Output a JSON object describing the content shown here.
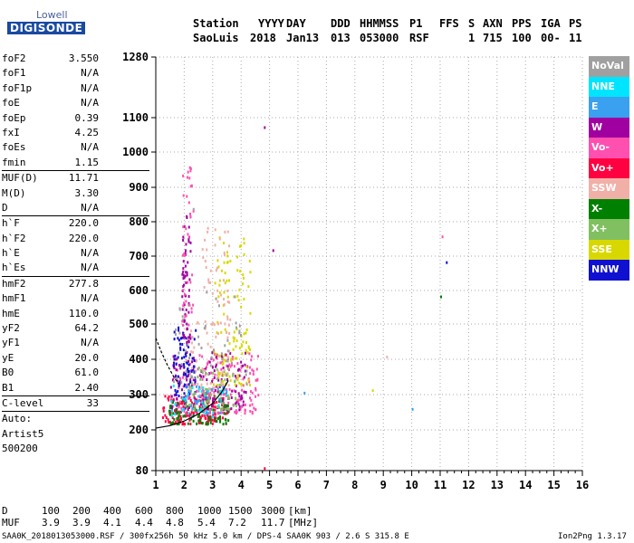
{
  "logo": {
    "line1": "Lowell",
    "line2": "DIGISONDE"
  },
  "header": {
    "labels": {
      "station": "Station",
      "yyyy": "YYYY",
      "day": "DAY",
      "ddd": "DDD",
      "hhmmss": "HHMMSS",
      "p1": "P1",
      "ffs": "FFS",
      "s": "S",
      "axn": "AXN",
      "pps": "PPS",
      "iga": "IGA",
      "ps": "PS"
    },
    "values": {
      "station": "SaoLuis",
      "yyyy": "2018",
      "day": "Jan13",
      "ddd": "013",
      "hhmmss": "053000",
      "p1": "RSF",
      "ffs": "",
      "s": "1",
      "axn": "715",
      "pps": "100",
      "iga": "00-",
      "ps": "11"
    }
  },
  "params": [
    {
      "name": "foF2",
      "value": "3.550"
    },
    {
      "name": "foF1",
      "value": "N/A"
    },
    {
      "name": "foF1p",
      "value": "N/A"
    },
    {
      "name": "foE",
      "value": "N/A"
    },
    {
      "name": "foEp",
      "value": "0.39"
    },
    {
      "name": "fxI",
      "value": "4.25"
    },
    {
      "name": "foEs",
      "value": "N/A"
    },
    {
      "name": "fmin",
      "value": "1.15",
      "sep_after": true
    },
    {
      "name": "MUF(D)",
      "value": "11.71"
    },
    {
      "name": "M(D)",
      "value": "3.30"
    },
    {
      "name": "D",
      "value": "N/A",
      "sep_after": true
    },
    {
      "name": "h`F",
      "value": "220.0"
    },
    {
      "name": "h`F2",
      "value": "220.0"
    },
    {
      "name": "h`E",
      "value": "N/A"
    },
    {
      "name": "h`Es",
      "value": "N/A",
      "sep_after": true
    },
    {
      "name": "hmF2",
      "value": "277.8"
    },
    {
      "name": "hmF1",
      "value": "N/A"
    },
    {
      "name": "hmE",
      "value": "110.0"
    },
    {
      "name": "yF2",
      "value": "64.2"
    },
    {
      "name": "yF1",
      "value": "N/A"
    },
    {
      "name": "yE",
      "value": "20.0"
    },
    {
      "name": "B0",
      "value": "61.0"
    },
    {
      "name": "B1",
      "value": "2.40",
      "sep_after": true
    },
    {
      "name": "C-level",
      "value": "33",
      "sep_after": true
    },
    {
      "name": "Auto:",
      "value": ""
    },
    {
      "name": "Artist5",
      "value": ""
    },
    {
      "name": "500200",
      "value": ""
    }
  ],
  "legend": [
    {
      "label": "NoVal",
      "color": "#a0a0a0"
    },
    {
      "label": "NNE",
      "color": "#00e5ff"
    },
    {
      "label": "E",
      "color": "#3aa0f0"
    },
    {
      "label": "W",
      "color": "#a000a0"
    },
    {
      "label": "Vo-",
      "color": "#ff50b0"
    },
    {
      "label": "Vo+",
      "color": "#ff0040"
    },
    {
      "label": "SSW",
      "color": "#f0b0a8"
    },
    {
      "label": "X-",
      "color": "#008000"
    },
    {
      "label": "X+",
      "color": "#80c060"
    },
    {
      "label": "SSE",
      "color": "#d8d800"
    },
    {
      "label": "NNW",
      "color": "#1010d0"
    }
  ],
  "footer": {
    "d_label": "D",
    "d_values": [
      "100",
      "200",
      "400",
      "600",
      "800",
      "1000",
      "1500",
      "3000"
    ],
    "d_unit": "[km]",
    "muf_label": "MUF",
    "muf_values": [
      "3.9",
      "3.9",
      "4.1",
      "4.4",
      "4.8",
      "5.4",
      "7.2",
      "11.7"
    ],
    "muf_unit": "[MHz]",
    "file_line": "SAA0K_2018013053000.RSF / 300fx256h 50 kHz 5.0 km / DPS-4 SAA0K 903 / 2.6 S 315.8 E",
    "version": "Ion2Png 1.3.17"
  },
  "chart_data": {
    "type": "scatter",
    "title": "",
    "xlabel": "",
    "ylabel": "",
    "xlim": [
      1,
      16
    ],
    "ylim": [
      80,
      1280
    ],
    "x_ticks": [
      1,
      2,
      3,
      4,
      5,
      6,
      7,
      8,
      9,
      10,
      11,
      12,
      13,
      14,
      15,
      16
    ],
    "y_ticks": [
      80,
      200,
      300,
      400,
      500,
      600,
      700,
      800,
      900,
      1000,
      1100,
      1280
    ],
    "grid": true,
    "y_scale": "log",
    "x_scale": "log",
    "clusters": [
      {
        "series": "Vo+",
        "xr": [
          1.2,
          3.5
        ],
        "yr": [
          220,
          300
        ],
        "n": 160
      },
      {
        "series": "Vo-",
        "xr": [
          1.5,
          4.6
        ],
        "yr": [
          250,
          420
        ],
        "n": 170
      },
      {
        "series": "W",
        "xr": [
          1.5,
          4.2
        ],
        "yr": [
          260,
          430
        ],
        "n": 140
      },
      {
        "series": "NNW",
        "xr": [
          1.6,
          2.4
        ],
        "yr": [
          300,
          500
        ],
        "n": 80
      },
      {
        "series": "X-",
        "xr": [
          1.4,
          3.6
        ],
        "yr": [
          220,
          290
        ],
        "n": 80
      },
      {
        "series": "X+",
        "xr": [
          2.0,
          3.8
        ],
        "yr": [
          260,
          380
        ],
        "n": 70
      },
      {
        "series": "SSE",
        "xr": [
          3.0,
          4.3
        ],
        "yr": [
          330,
          760
        ],
        "n": 110
      },
      {
        "series": "SSW",
        "xr": [
          2.0,
          3.6
        ],
        "yr": [
          320,
          520
        ],
        "n": 60
      },
      {
        "series": "NNE",
        "xr": [
          1.5,
          3.5
        ],
        "yr": [
          240,
          330
        ],
        "n": 40
      },
      {
        "series": "E",
        "xr": [
          2.0,
          3.5
        ],
        "yr": [
          250,
          340
        ],
        "n": 30
      },
      {
        "series": "NoVal",
        "xr": [
          1.6,
          4.2
        ],
        "yr": [
          320,
          600
        ],
        "n": 50
      },
      {
        "series": "W",
        "xr": [
          1.9,
          2.2
        ],
        "yr": [
          450,
          820
        ],
        "n": 60
      },
      {
        "series": "Vo-",
        "xr": [
          1.9,
          2.3
        ],
        "yr": [
          500,
          960
        ],
        "n": 40
      },
      {
        "series": "SSW",
        "xr": [
          2.6,
          3.6
        ],
        "yr": [
          500,
          800
        ],
        "n": 40
      }
    ],
    "isolated_points": [
      {
        "series": "W",
        "x": 4.8,
        "y": 1075
      },
      {
        "series": "W",
        "x": 5.1,
        "y": 720
      },
      {
        "series": "NNW",
        "x": 11.2,
        "y": 685
      },
      {
        "series": "Vo-",
        "x": 11.05,
        "y": 760
      },
      {
        "series": "X-",
        "x": 11.0,
        "y": 585
      },
      {
        "series": "E",
        "x": 6.2,
        "y": 308
      },
      {
        "series": "E",
        "x": 10.0,
        "y": 262
      },
      {
        "series": "SSE",
        "x": 8.6,
        "y": 315
      },
      {
        "series": "SSW",
        "x": 9.1,
        "y": 410
      },
      {
        "series": "Vo+",
        "x": 4.8,
        "y": 90
      },
      {
        "series": "NoVal",
        "x": 2.3,
        "y": 840
      }
    ],
    "trace_curve": {
      "x": [
        1.0,
        1.5,
        2.0,
        2.5,
        3.0,
        3.3,
        3.55
      ],
      "y": [
        205,
        212,
        225,
        245,
        275,
        305,
        340
      ]
    },
    "trace_curve_upper": {
      "x": [
        1.0,
        1.2,
        1.4,
        1.6,
        1.8
      ],
      "y": [
        460,
        420,
        385,
        355,
        330
      ]
    }
  }
}
